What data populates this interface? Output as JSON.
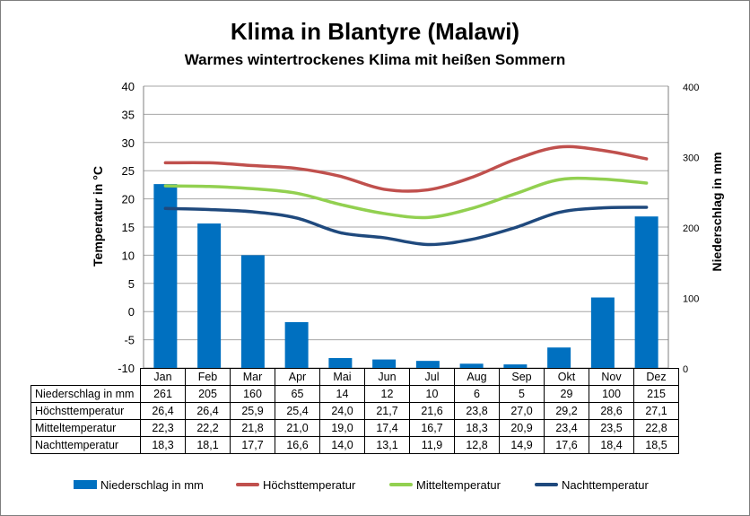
{
  "title": "Klima in Blantyre (Malawi)",
  "subtitle": "Warmes wintertrockenes Klima mit heißen Sommern",
  "colors": {
    "precip": "#0070c0",
    "max": "#c0504d",
    "mean": "#92d050",
    "min": "#1f497d",
    "grid": "#a6a6a6"
  },
  "chart_data": {
    "type": "bar",
    "title": "Klima in Blantyre (Malawi)",
    "subtitle": "Warmes wintertrockenes Klima mit heißen Sommern",
    "categories": [
      "Jan",
      "Feb",
      "Mar",
      "Apr",
      "Mai",
      "Jun",
      "Jul",
      "Aug",
      "Sep",
      "Okt",
      "Nov",
      "Dez"
    ],
    "ylabel": "Temperatur in °C",
    "ylabel_right": "Niederschlag in mm",
    "ylim": [
      -10,
      40
    ],
    "ylim_right": [
      0,
      400
    ],
    "yticks": [
      "40",
      "35",
      "30",
      "25",
      "20",
      "15",
      "10",
      "5",
      "0",
      "-5",
      "-10"
    ],
    "yticks_right": [
      "400",
      "300",
      "200",
      "100",
      "0"
    ],
    "grid": true,
    "legend_position": "bottom",
    "series": [
      {
        "name": "Niederschlag in mm",
        "kind": "bar",
        "axis": "right",
        "values": [
          261,
          205,
          160,
          65,
          14,
          12,
          10,
          6,
          5,
          29,
          100,
          215
        ]
      },
      {
        "name": "Höchsttemperatur",
        "kind": "line",
        "axis": "left",
        "values": [
          26.4,
          26.4,
          25.9,
          25.4,
          24.0,
          21.7,
          21.6,
          23.8,
          27.0,
          29.2,
          28.6,
          27.1
        ]
      },
      {
        "name": "Mitteltemperatur",
        "kind": "line",
        "axis": "left",
        "values": [
          22.3,
          22.2,
          21.8,
          21.0,
          19.0,
          17.4,
          16.7,
          18.3,
          20.9,
          23.4,
          23.5,
          22.8
        ]
      },
      {
        "name": "Nachttemperatur",
        "kind": "line",
        "axis": "left",
        "values": [
          18.3,
          18.1,
          17.7,
          16.6,
          14.0,
          13.1,
          11.9,
          12.8,
          14.9,
          17.6,
          18.4,
          18.5
        ]
      }
    ],
    "table": {
      "rows": [
        {
          "label": "Niederschlag in mm",
          "cells": [
            "261",
            "205",
            "160",
            "65",
            "14",
            "12",
            "10",
            "6",
            "5",
            "29",
            "100",
            "215"
          ]
        },
        {
          "label": "Höchsttemperatur",
          "cells": [
            "26,4",
            "26,4",
            "25,9",
            "25,4",
            "24,0",
            "21,7",
            "21,6",
            "23,8",
            "27,0",
            "29,2",
            "28,6",
            "27,1"
          ]
        },
        {
          "label": "Mitteltemperatur",
          "cells": [
            "22,3",
            "22,2",
            "21,8",
            "21,0",
            "19,0",
            "17,4",
            "16,7",
            "18,3",
            "20,9",
            "23,4",
            "23,5",
            "22,8"
          ]
        },
        {
          "label": "Nachttemperatur",
          "cells": [
            "18,3",
            "18,1",
            "17,7",
            "16,6",
            "14,0",
            "13,1",
            "11,9",
            "12,8",
            "14,9",
            "17,6",
            "18,4",
            "18,5"
          ]
        }
      ]
    }
  }
}
